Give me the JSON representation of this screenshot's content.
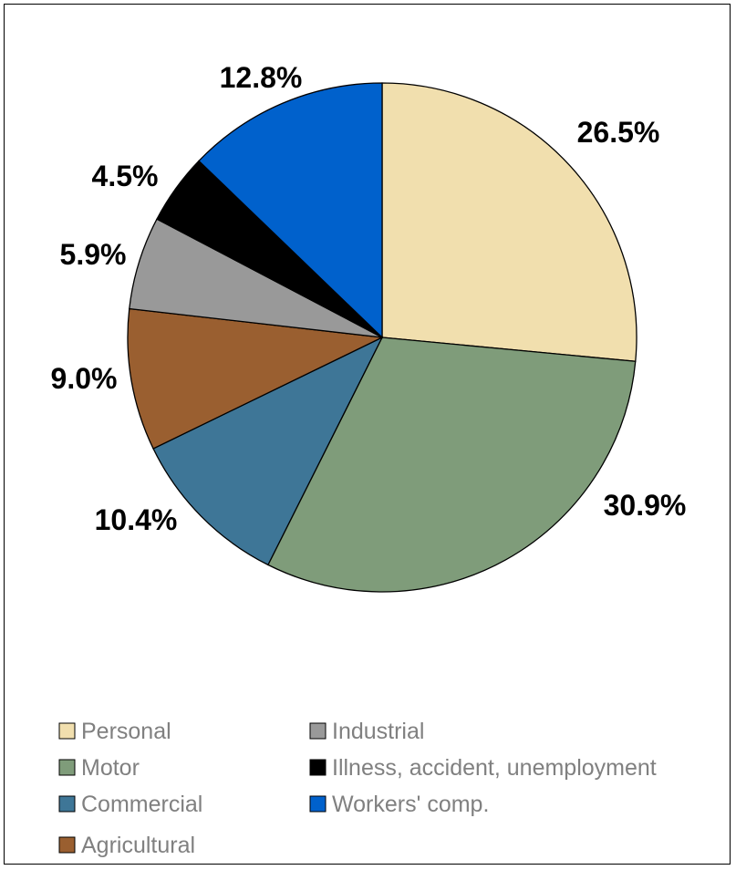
{
  "chart_data": {
    "type": "pie",
    "title": "",
    "slices": [
      {
        "name": "Personal",
        "value": 26.5,
        "label": "26.5%",
        "color": "#f1dfae"
      },
      {
        "name": "Motor",
        "value": 30.9,
        "label": "30.9%",
        "color": "#7f9c7a"
      },
      {
        "name": "Commercial",
        "value": 10.4,
        "label": "10.4%",
        "color": "#3e7697"
      },
      {
        "name": "Agricultural",
        "value": 9.0,
        "label": "9.0%",
        "color": "#9a5f30"
      },
      {
        "name": "Industrial",
        "value": 5.9,
        "label": "5.9%",
        "color": "#999999"
      },
      {
        "name": "Illness, accident, unemployment",
        "value": 4.5,
        "label": "4.5%",
        "color": "#000000"
      },
      {
        "name": "Workers' comp.",
        "value": 12.8,
        "label": "12.8%",
        "color": "#0061cc"
      }
    ],
    "start_angle": "12 o'clock",
    "direction": "clockwise",
    "legend_position": "bottom",
    "legend_layout": [
      [
        "Personal",
        "Industrial"
      ],
      [
        "Motor",
        "Illness, accident, unemployment"
      ],
      [
        "Commercial",
        "Workers' comp."
      ],
      [
        "Agricultural"
      ]
    ]
  }
}
